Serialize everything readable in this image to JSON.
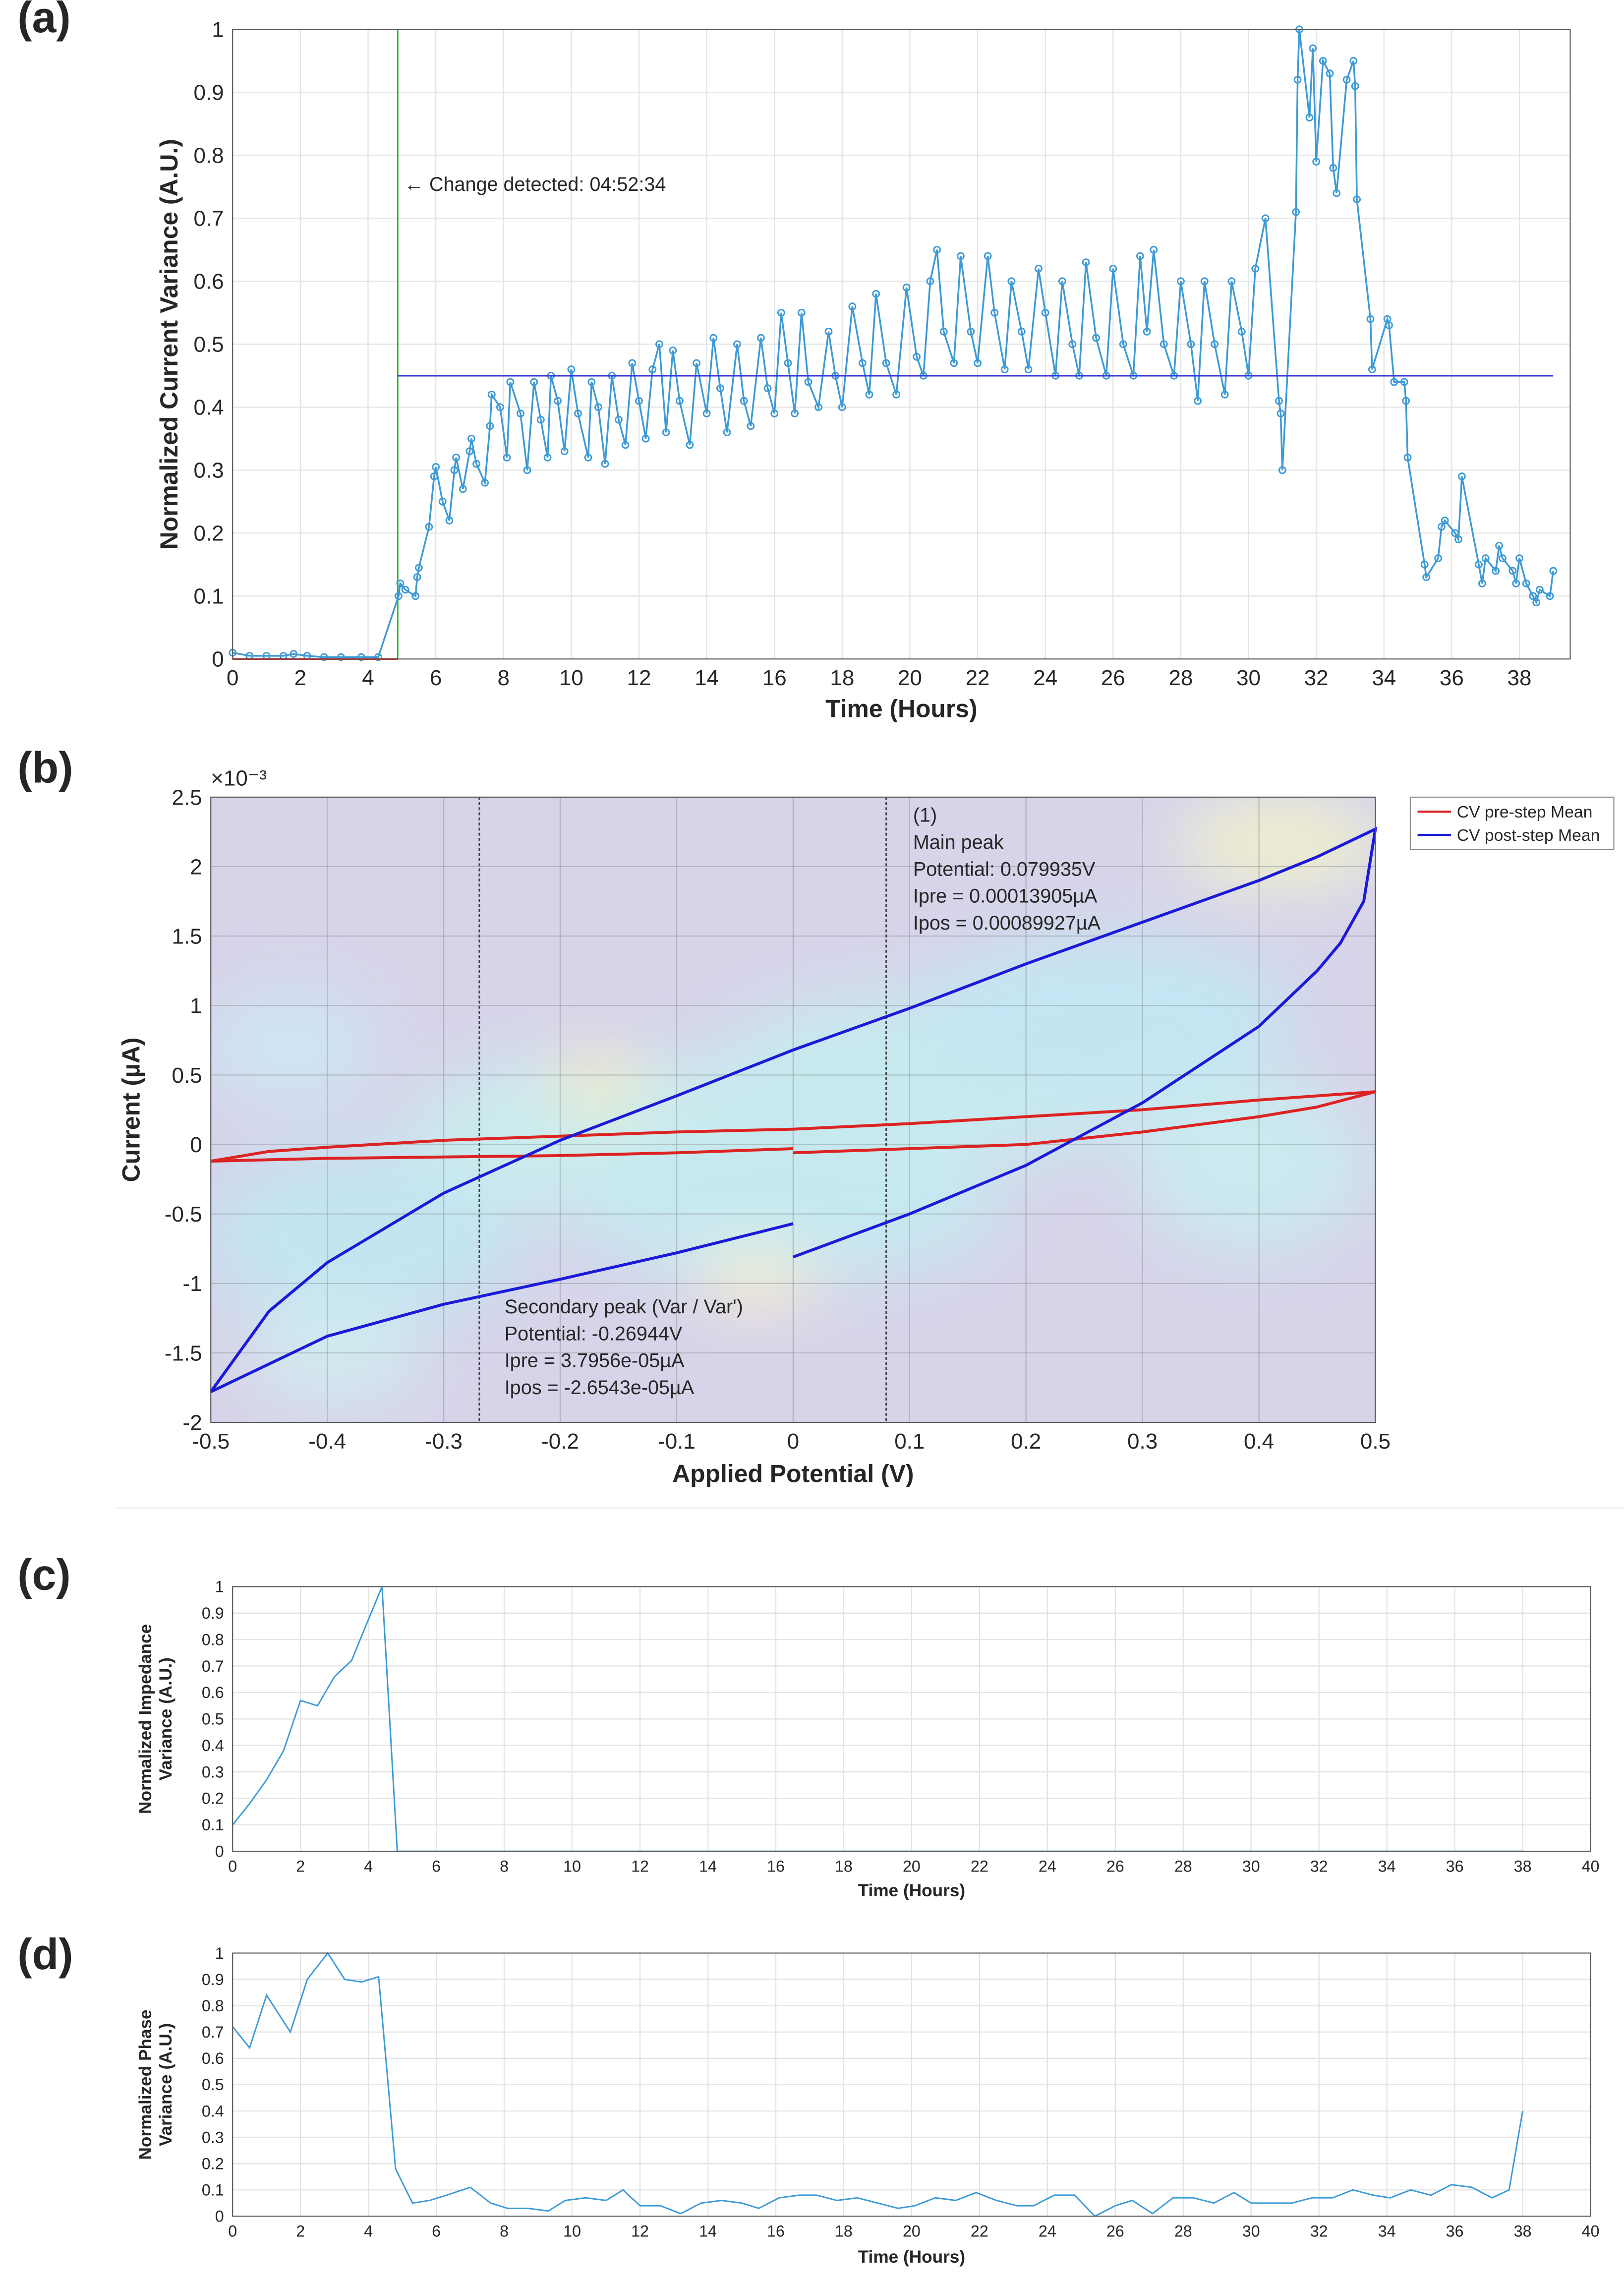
{
  "chart_data": [
    {
      "type": "line",
      "panel_label": "(a)",
      "x_label": "Time (Hours)",
      "y_label": "Normalized Current Variance (A.U.)",
      "xlim": [
        0,
        39.5
      ],
      "ylim": [
        0,
        1
      ],
      "xticks": [
        0,
        2,
        4,
        6,
        8,
        10,
        12,
        14,
        16,
        18,
        20,
        22,
        24,
        26,
        28,
        30,
        32,
        34,
        36,
        38
      ],
      "yticks": [
        0,
        0.1,
        0.2,
        0.3,
        0.4,
        0.5,
        0.6,
        0.7,
        0.8,
        0.9,
        1
      ],
      "grid": true,
      "series": [
        {
          "color": "#3d9ad6",
          "marker": "circle",
          "x": [
            0,
            0.5,
            1,
            1.5,
            1.8,
            2.2,
            2.7,
            3.2,
            3.8,
            4.3,
            4.9,
            4.95,
            5.1,
            5.4,
            5.45,
            5.5,
            5.8,
            5.95,
            6.0,
            6.2,
            6.4,
            6.55,
            6.6,
            6.8,
            7.0,
            7.05,
            7.2,
            7.45,
            7.6,
            7.65,
            7.9,
            8.1,
            8.2,
            8.5,
            8.7,
            8.9,
            9.1,
            9.3,
            9.4,
            9.6,
            9.8,
            10.0,
            10.2,
            10.5,
            10.6,
            10.8,
            11.0,
            11.2,
            11.4,
            11.6,
            11.8,
            12.0,
            12.2,
            12.4,
            12.6,
            12.8,
            13.0,
            13.2,
            13.5,
            13.7,
            14.0,
            14.2,
            14.4,
            14.6,
            14.9,
            15.1,
            15.3,
            15.6,
            15.8,
            16.0,
            16.2,
            16.4,
            16.6,
            16.8,
            17.0,
            17.3,
            17.6,
            17.8,
            18.0,
            18.3,
            18.6,
            18.8,
            19.0,
            19.3,
            19.6,
            19.9,
            20.2,
            20.4,
            20.6,
            20.8,
            21.0,
            21.3,
            21.5,
            21.8,
            22.0,
            22.3,
            22.5,
            22.8,
            23.0,
            23.3,
            23.5,
            23.8,
            24.0,
            24.3,
            24.5,
            24.8,
            25.0,
            25.2,
            25.5,
            25.8,
            26.0,
            26.3,
            26.6,
            26.8,
            27.0,
            27.2,
            27.5,
            27.8,
            28.0,
            28.3,
            28.5,
            28.7,
            29.0,
            29.3,
            29.5,
            29.8,
            30.0,
            30.2,
            30.5,
            30.9,
            30.95,
            31.0,
            31.4,
            31.45,
            31.5,
            31.8,
            31.9,
            32.0,
            32.2,
            32.4,
            32.5,
            32.6,
            32.9,
            33.1,
            33.15,
            33.2,
            33.6,
            33.65,
            34.1,
            34.15,
            34.3,
            34.6,
            34.65,
            34.7,
            35.2,
            35.25,
            35.6,
            35.7,
            35.8,
            36.1,
            36.2,
            36.3,
            36.8,
            36.9,
            37.0,
            37.3,
            37.4,
            37.5,
            37.8,
            37.9,
            38.0,
            38.2,
            38.4,
            38.5,
            38.6,
            38.9,
            39.0
          ],
          "values": [
            0.01,
            0.005,
            0.005,
            0.005,
            0.008,
            0.005,
            0.003,
            0.003,
            0.003,
            0.003,
            0.1,
            0.12,
            0.11,
            0.1,
            0.13,
            0.145,
            0.21,
            0.29,
            0.305,
            0.25,
            0.22,
            0.3,
            0.32,
            0.27,
            0.33,
            0.35,
            0.31,
            0.28,
            0.37,
            0.42,
            0.4,
            0.32,
            0.44,
            0.39,
            0.3,
            0.44,
            0.38,
            0.32,
            0.45,
            0.41,
            0.33,
            0.46,
            0.39,
            0.32,
            0.44,
            0.4,
            0.31,
            0.45,
            0.38,
            0.34,
            0.47,
            0.41,
            0.35,
            0.46,
            0.5,
            0.36,
            0.49,
            0.41,
            0.34,
            0.47,
            0.39,
            0.51,
            0.43,
            0.36,
            0.5,
            0.41,
            0.37,
            0.51,
            0.43,
            0.39,
            0.55,
            0.47,
            0.39,
            0.55,
            0.44,
            0.4,
            0.52,
            0.45,
            0.4,
            0.56,
            0.47,
            0.42,
            0.58,
            0.47,
            0.42,
            0.59,
            0.48,
            0.45,
            0.6,
            0.65,
            0.52,
            0.47,
            0.64,
            0.52,
            0.47,
            0.64,
            0.55,
            0.46,
            0.6,
            0.52,
            0.46,
            0.62,
            0.55,
            0.45,
            0.6,
            0.5,
            0.45,
            0.63,
            0.51,
            0.45,
            0.62,
            0.5,
            0.45,
            0.64,
            0.52,
            0.65,
            0.5,
            0.45,
            0.6,
            0.5,
            0.41,
            0.6,
            0.5,
            0.42,
            0.6,
            0.52,
            0.45,
            0.62,
            0.7,
            0.41,
            0.39,
            0.3,
            0.71,
            0.92,
            1.0,
            0.86,
            0.97,
            0.79,
            0.95,
            0.93,
            0.78,
            0.74,
            0.92,
            0.95,
            0.91,
            0.73,
            0.54,
            0.46,
            0.54,
            0.53,
            0.44,
            0.44,
            0.41,
            0.32,
            0.15,
            0.13,
            0.16,
            0.21,
            0.22,
            0.2,
            0.19,
            0.29,
            0.15,
            0.12,
            0.16,
            0.14,
            0.18,
            0.16,
            0.14,
            0.12,
            0.16,
            0.12,
            0.1,
            0.09,
            0.11,
            0.1,
            0.14
          ]
        },
        {
          "color": "#e03030",
          "x": [
            0,
            4.876
          ],
          "values": [
            0,
            0
          ]
        },
        {
          "color": "#3a3ad8",
          "x": [
            4.876,
            39
          ],
          "values": [
            0.45,
            0.45
          ]
        }
      ],
      "vlines": [
        {
          "x": 4.876,
          "color": "#33bb33"
        }
      ],
      "annotations": [
        {
          "text": "← Change detected: 04:52:34",
          "color": "#22aa22"
        }
      ]
    },
    {
      "type": "line",
      "panel_label": "(b)",
      "x_label": "Applied Potential (V)",
      "y_label": "Current (µA)",
      "y_exponent": "×10⁻³",
      "xlim": [
        -0.5,
        0.5
      ],
      "ylim": [
        -2,
        2.5
      ],
      "xticks": [
        -0.5,
        -0.4,
        -0.3,
        -0.2,
        -0.1,
        0,
        0.1,
        0.2,
        0.3,
        0.4,
        0.5
      ],
      "yticks": [
        -2,
        -1.5,
        -1,
        -0.5,
        0,
        0.5,
        1,
        1.5,
        2,
        2.5
      ],
      "grid": true,
      "legend": "outside",
      "series": [
        {
          "name": "CV pre-step Mean",
          "color": "#dd2222",
          "x": [
            -0.5,
            -0.45,
            -0.4,
            -0.3,
            -0.2,
            -0.1,
            0,
            0.1,
            0.2,
            0.3,
            0.4,
            0.5,
            0.45,
            0.4,
            0.3,
            0.2,
            0.1,
            0,
            0,
            0,
            -0.1,
            -0.2,
            -0.3,
            -0.4,
            -0.5
          ],
          "values": [
            -0.12,
            -0.05,
            -0.02,
            0.03,
            0.06,
            0.09,
            0.11,
            0.15,
            0.2,
            0.25,
            0.32,
            0.38,
            0.27,
            0.2,
            0.09,
            0.0,
            -0.03,
            -0.06,
            null,
            -0.03,
            -0.06,
            -0.08,
            -0.09,
            -0.1,
            -0.12
          ]
        },
        {
          "name": "CV post-step Mean",
          "color": "#1a1ad8",
          "x": [
            -0.5,
            -0.45,
            -0.4,
            -0.3,
            -0.2,
            -0.1,
            0,
            0.1,
            0.2,
            0.3,
            0.4,
            0.45,
            0.5,
            0.49,
            0.47,
            0.45,
            0.4,
            0.3,
            0.2,
            0.1,
            0,
            0,
            0,
            -0.1,
            -0.2,
            -0.3,
            -0.4,
            -0.5
          ],
          "values": [
            -1.78,
            -1.2,
            -0.85,
            -0.35,
            0.03,
            0.35,
            0.68,
            0.98,
            1.3,
            1.6,
            1.9,
            2.07,
            2.27,
            1.75,
            1.45,
            1.25,
            0.85,
            0.3,
            -0.15,
            -0.5,
            -0.81,
            null,
            -0.57,
            -0.78,
            -0.97,
            -1.15,
            -1.38,
            -1.78
          ]
        }
      ],
      "vlines": [
        {
          "x": -0.26944,
          "color": "#444444"
        },
        {
          "x": 0.079935,
          "color": "#444444"
        }
      ],
      "annotations": [
        {
          "lines": [
            "(1)",
            "Main peak",
            "Potential: 0.079935V",
            "Ipre = 0.00013905µA",
            "Ipos = 0.00089927µA"
          ],
          "color": "#111111"
        },
        {
          "lines": [
            "Secondary peak (Var / Var')",
            "Potential: -0.26944V",
            "Ipre = 3.7956e-05µA",
            "Ipos = -2.6543e-05µA"
          ],
          "color": "#111111"
        }
      ]
    },
    {
      "type": "line",
      "panel_label": "(c)",
      "x_label": "Time (Hours)",
      "y_label": [
        "Normalized Impedance",
        "Variance (A.U.)"
      ],
      "xlim": [
        0,
        40
      ],
      "ylim": [
        0,
        1
      ],
      "xticks": [
        0,
        2,
        4,
        6,
        8,
        10,
        12,
        14,
        16,
        18,
        20,
        22,
        24,
        26,
        28,
        30,
        32,
        34,
        36,
        38,
        40
      ],
      "yticks": [
        0,
        0.1,
        0.2,
        0.3,
        0.4,
        0.5,
        0.6,
        0.7,
        0.8,
        0.9,
        1
      ],
      "grid": true,
      "series": [
        {
          "color": "#3d9ad6",
          "x": [
            0,
            0.5,
            1,
            1.5,
            2,
            2.5,
            3,
            3.5,
            4.4,
            4.85,
            38
          ],
          "values": [
            0.1,
            0.18,
            0.27,
            0.38,
            0.57,
            0.55,
            0.66,
            0.72,
            1.0,
            0,
            0
          ]
        }
      ]
    },
    {
      "type": "line",
      "panel_label": "(d)",
      "x_label": "Time (Hours)",
      "y_label": [
        "Normalized Phase",
        "Variance (A.U.)"
      ],
      "xlim": [
        0,
        40
      ],
      "ylim": [
        0,
        1
      ],
      "xticks": [
        0,
        2,
        4,
        6,
        8,
        10,
        12,
        14,
        16,
        18,
        20,
        22,
        24,
        26,
        28,
        30,
        32,
        34,
        36,
        38,
        40
      ],
      "yticks": [
        0,
        0.1,
        0.2,
        0.3,
        0.4,
        0.5,
        0.6,
        0.7,
        0.8,
        0.9,
        1
      ],
      "grid": true,
      "series": [
        {
          "color": "#3d9ad6",
          "x": [
            0,
            0.5,
            1.0,
            1.7,
            2.2,
            2.8,
            3.3,
            3.8,
            4.3,
            4.8,
            5.3,
            5.8,
            6.3,
            7.0,
            7.6,
            8.1,
            8.7,
            9.3,
            9.8,
            10.4,
            11.0,
            11.5,
            12.0,
            12.6,
            13.2,
            13.8,
            14.4,
            15.0,
            15.5,
            16.1,
            16.7,
            17.2,
            17.8,
            18.4,
            19.0,
            19.6,
            20.1,
            20.7,
            21.3,
            21.9,
            22.5,
            23.1,
            23.6,
            24.2,
            24.8,
            25.4,
            26.0,
            26.5,
            27.1,
            27.7,
            28.3,
            28.9,
            29.5,
            30.0,
            30.6,
            31.2,
            31.8,
            32.4,
            33.0,
            33.6,
            34.1,
            34.7,
            35.3,
            35.9,
            36.5,
            37.1,
            37.6,
            38.0
          ],
          "values": [
            0.72,
            0.64,
            0.84,
            0.7,
            0.9,
            1.0,
            0.9,
            0.89,
            0.91,
            0.18,
            0.05,
            0.06,
            0.08,
            0.11,
            0.05,
            0.03,
            0.03,
            0.02,
            0.06,
            0.07,
            0.06,
            0.1,
            0.04,
            0.04,
            0.01,
            0.05,
            0.06,
            0.05,
            0.03,
            0.07,
            0.08,
            0.08,
            0.06,
            0.07,
            0.05,
            0.03,
            0.04,
            0.07,
            0.06,
            0.09,
            0.06,
            0.04,
            0.04,
            0.08,
            0.08,
            0.0,
            0.04,
            0.06,
            0.01,
            0.07,
            0.07,
            0.05,
            0.09,
            0.05,
            0.05,
            0.05,
            0.07,
            0.07,
            0.1,
            0.08,
            0.07,
            0.1,
            0.08,
            0.12,
            0.11,
            0.07,
            0.1,
            0.4
          ]
        }
      ]
    }
  ]
}
